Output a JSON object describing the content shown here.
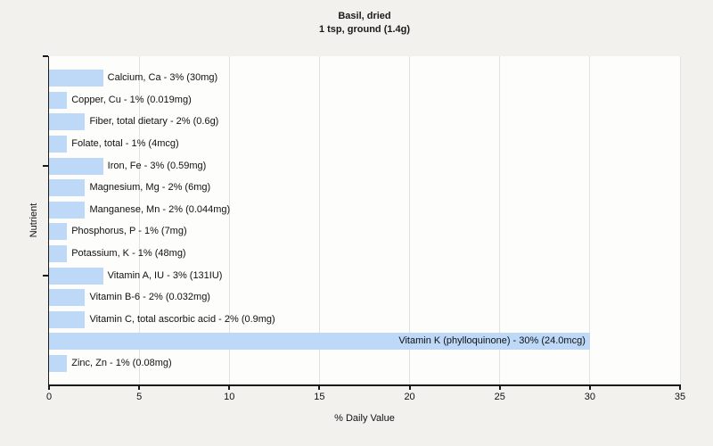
{
  "header": {
    "title_line1": "Basil, dried",
    "title_line2": "1 tsp, ground (1.4g)"
  },
  "chart_data": {
    "type": "bar",
    "orientation": "horizontal",
    "title": "Basil, dried 1 tsp, ground (1.4g)",
    "xlabel": "% Daily Value",
    "ylabel": "Nutrient",
    "xlim": [
      0,
      35
    ],
    "x_ticks": [
      0,
      5,
      10,
      15,
      20,
      25,
      30,
      35
    ],
    "ylim": [
      0,
      15
    ],
    "y_ticks": [
      5,
      10,
      15
    ],
    "grid": true,
    "legend": "none",
    "categories": [
      "Calcium, Ca",
      "Copper, Cu",
      "Fiber, total dietary",
      "Folate, total",
      "Iron, Fe",
      "Magnesium, Mg",
      "Manganese, Mn",
      "Phosphorus, P",
      "Potassium, K",
      "Vitamin A, IU",
      "Vitamin B-6",
      "Vitamin C, total ascorbic acid",
      "Vitamin K (phylloquinone)",
      "Zinc, Zn"
    ],
    "values": [
      3,
      1,
      2,
      1,
      3,
      2,
      2,
      1,
      1,
      3,
      2,
      2,
      30,
      1
    ],
    "amounts": [
      "30mg",
      "0.019mg",
      "0.6g",
      "4mcg",
      "0.59mg",
      "6mg",
      "0.044mg",
      "7mg",
      "48mg",
      "131IU",
      "0.032mg",
      "0.9mg",
      "24.0mcg",
      "0.08mg"
    ],
    "bar_labels": [
      "Calcium, Ca - 3% (30mg)",
      "Copper, Cu - 1% (0.019mg)",
      "Fiber, total dietary - 2% (0.6g)",
      "Folate, total - 1% (4mcg)",
      "Iron, Fe - 3% (0.59mg)",
      "Magnesium, Mg - 2% (6mg)",
      "Manganese, Mn - 2% (0.044mg)",
      "Phosphorus, P - 1% (7mg)",
      "Potassium, K - 1% (48mg)",
      "Vitamin A, IU - 3% (131IU)",
      "Vitamin B-6 - 2% (0.032mg)",
      "Vitamin C, total ascorbic acid - 2% (0.9mg)",
      "Vitamin K (phylloquinone) - 30% (24.0mcg)",
      "Zinc, Zn - 1% (0.08mg)"
    ]
  },
  "colors": {
    "background": "#f2f1ee",
    "plot_background": "#fdfdfc",
    "gridline": "#e3e2df",
    "bar": "#bed9f8",
    "axis": "#1a1a1a",
    "text": "#111111"
  }
}
